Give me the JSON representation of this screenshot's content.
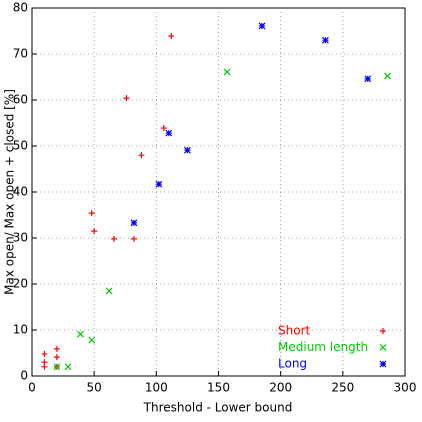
{
  "chart_data": {
    "type": "scatter",
    "x_label": "Threshold - Lower bound",
    "y_label": "Max open/ Max open + closed [%]",
    "xlim": [
      0,
      300
    ],
    "xticks": [
      0,
      50,
      100,
      150,
      200,
      250,
      300
    ],
    "ylim": [
      0,
      80
    ],
    "yticks": [
      0,
      10,
      20,
      30,
      40,
      50,
      60,
      70,
      80
    ],
    "grid": true,
    "legend": "bottom-right",
    "series": [
      {
        "name": "Short",
        "color": "#ff0000",
        "marker": "plus",
        "x": [
          10,
          10,
          10,
          20,
          20,
          20,
          48,
          50,
          66,
          76,
          82,
          88,
          106,
          112
        ],
        "values": [
          4.8,
          3,
          2,
          5.9,
          4.1,
          2,
          35.4,
          31.5,
          29.8,
          60.4,
          29.8,
          48,
          53.9,
          73.9
        ]
      },
      {
        "name": "Medium length",
        "color": "#00cc00",
        "marker": "cross",
        "x": [
          20,
          29,
          39,
          48,
          62,
          157,
          286
        ],
        "values": [
          2,
          2,
          9.1,
          7.8,
          18.5,
          66.1,
          65.2
        ]
      },
      {
        "name": "Long",
        "color": "#0000ff",
        "marker": "star",
        "x": [
          82,
          110,
          102,
          125,
          185,
          236,
          270
        ],
        "values": [
          33.3,
          52.8,
          41.7,
          49.1,
          76.1,
          73,
          64.6
        ]
      }
    ]
  }
}
